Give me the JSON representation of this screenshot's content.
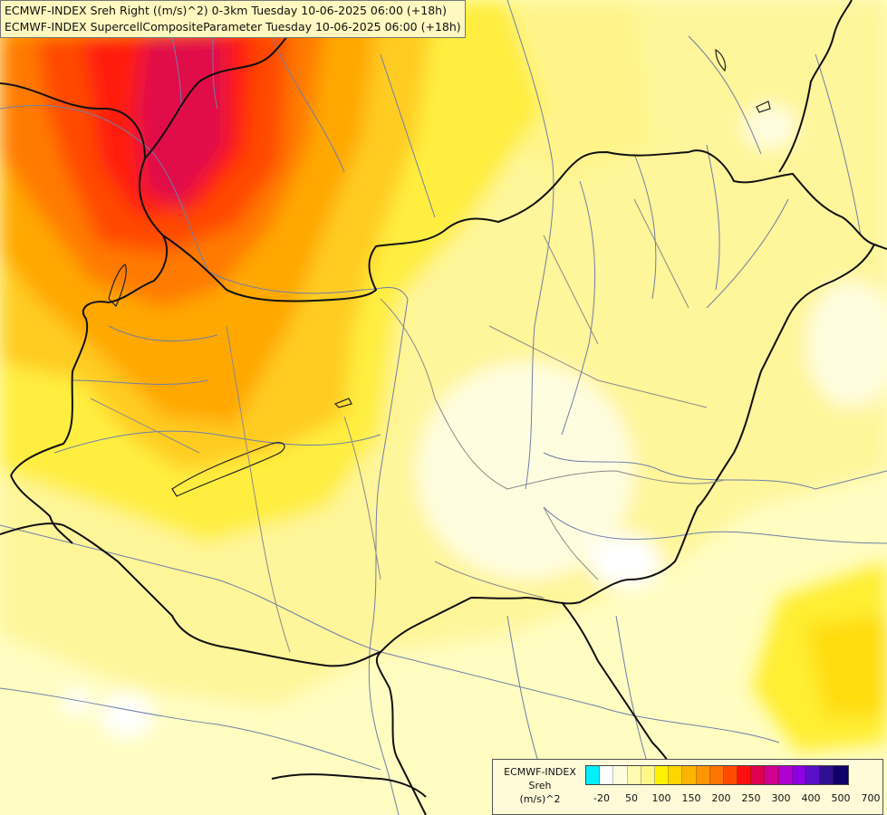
{
  "header": {
    "line1": "ECMWF-INDEX Sreh Right ((m/s)^2) 0-3km Tuesday 10-06-2025 06:00 (+18h)",
    "line2": "ECMWF-INDEX SupercellCompositeParameter Tuesday 10-06-2025 06:00 (+18h)"
  },
  "legend": {
    "source": "ECMWF-INDEX",
    "variable": "Sreh",
    "unit": "(m/s)^2",
    "colors": [
      "#00f0ff",
      "#ffffff",
      "#fffde0",
      "#fffbb0",
      "#fff78a",
      "#fff200",
      "#ffd400",
      "#ffb400",
      "#ff9600",
      "#ff7400",
      "#ff4a00",
      "#ff1010",
      "#e00050",
      "#cf0090",
      "#b000d0",
      "#8a00e0",
      "#5a10c8",
      "#301090",
      "#10006a"
    ],
    "ticks": [
      "-20",
      "50",
      "100",
      "150",
      "200",
      "250",
      "300",
      "400",
      "500",
      "700"
    ]
  }
}
